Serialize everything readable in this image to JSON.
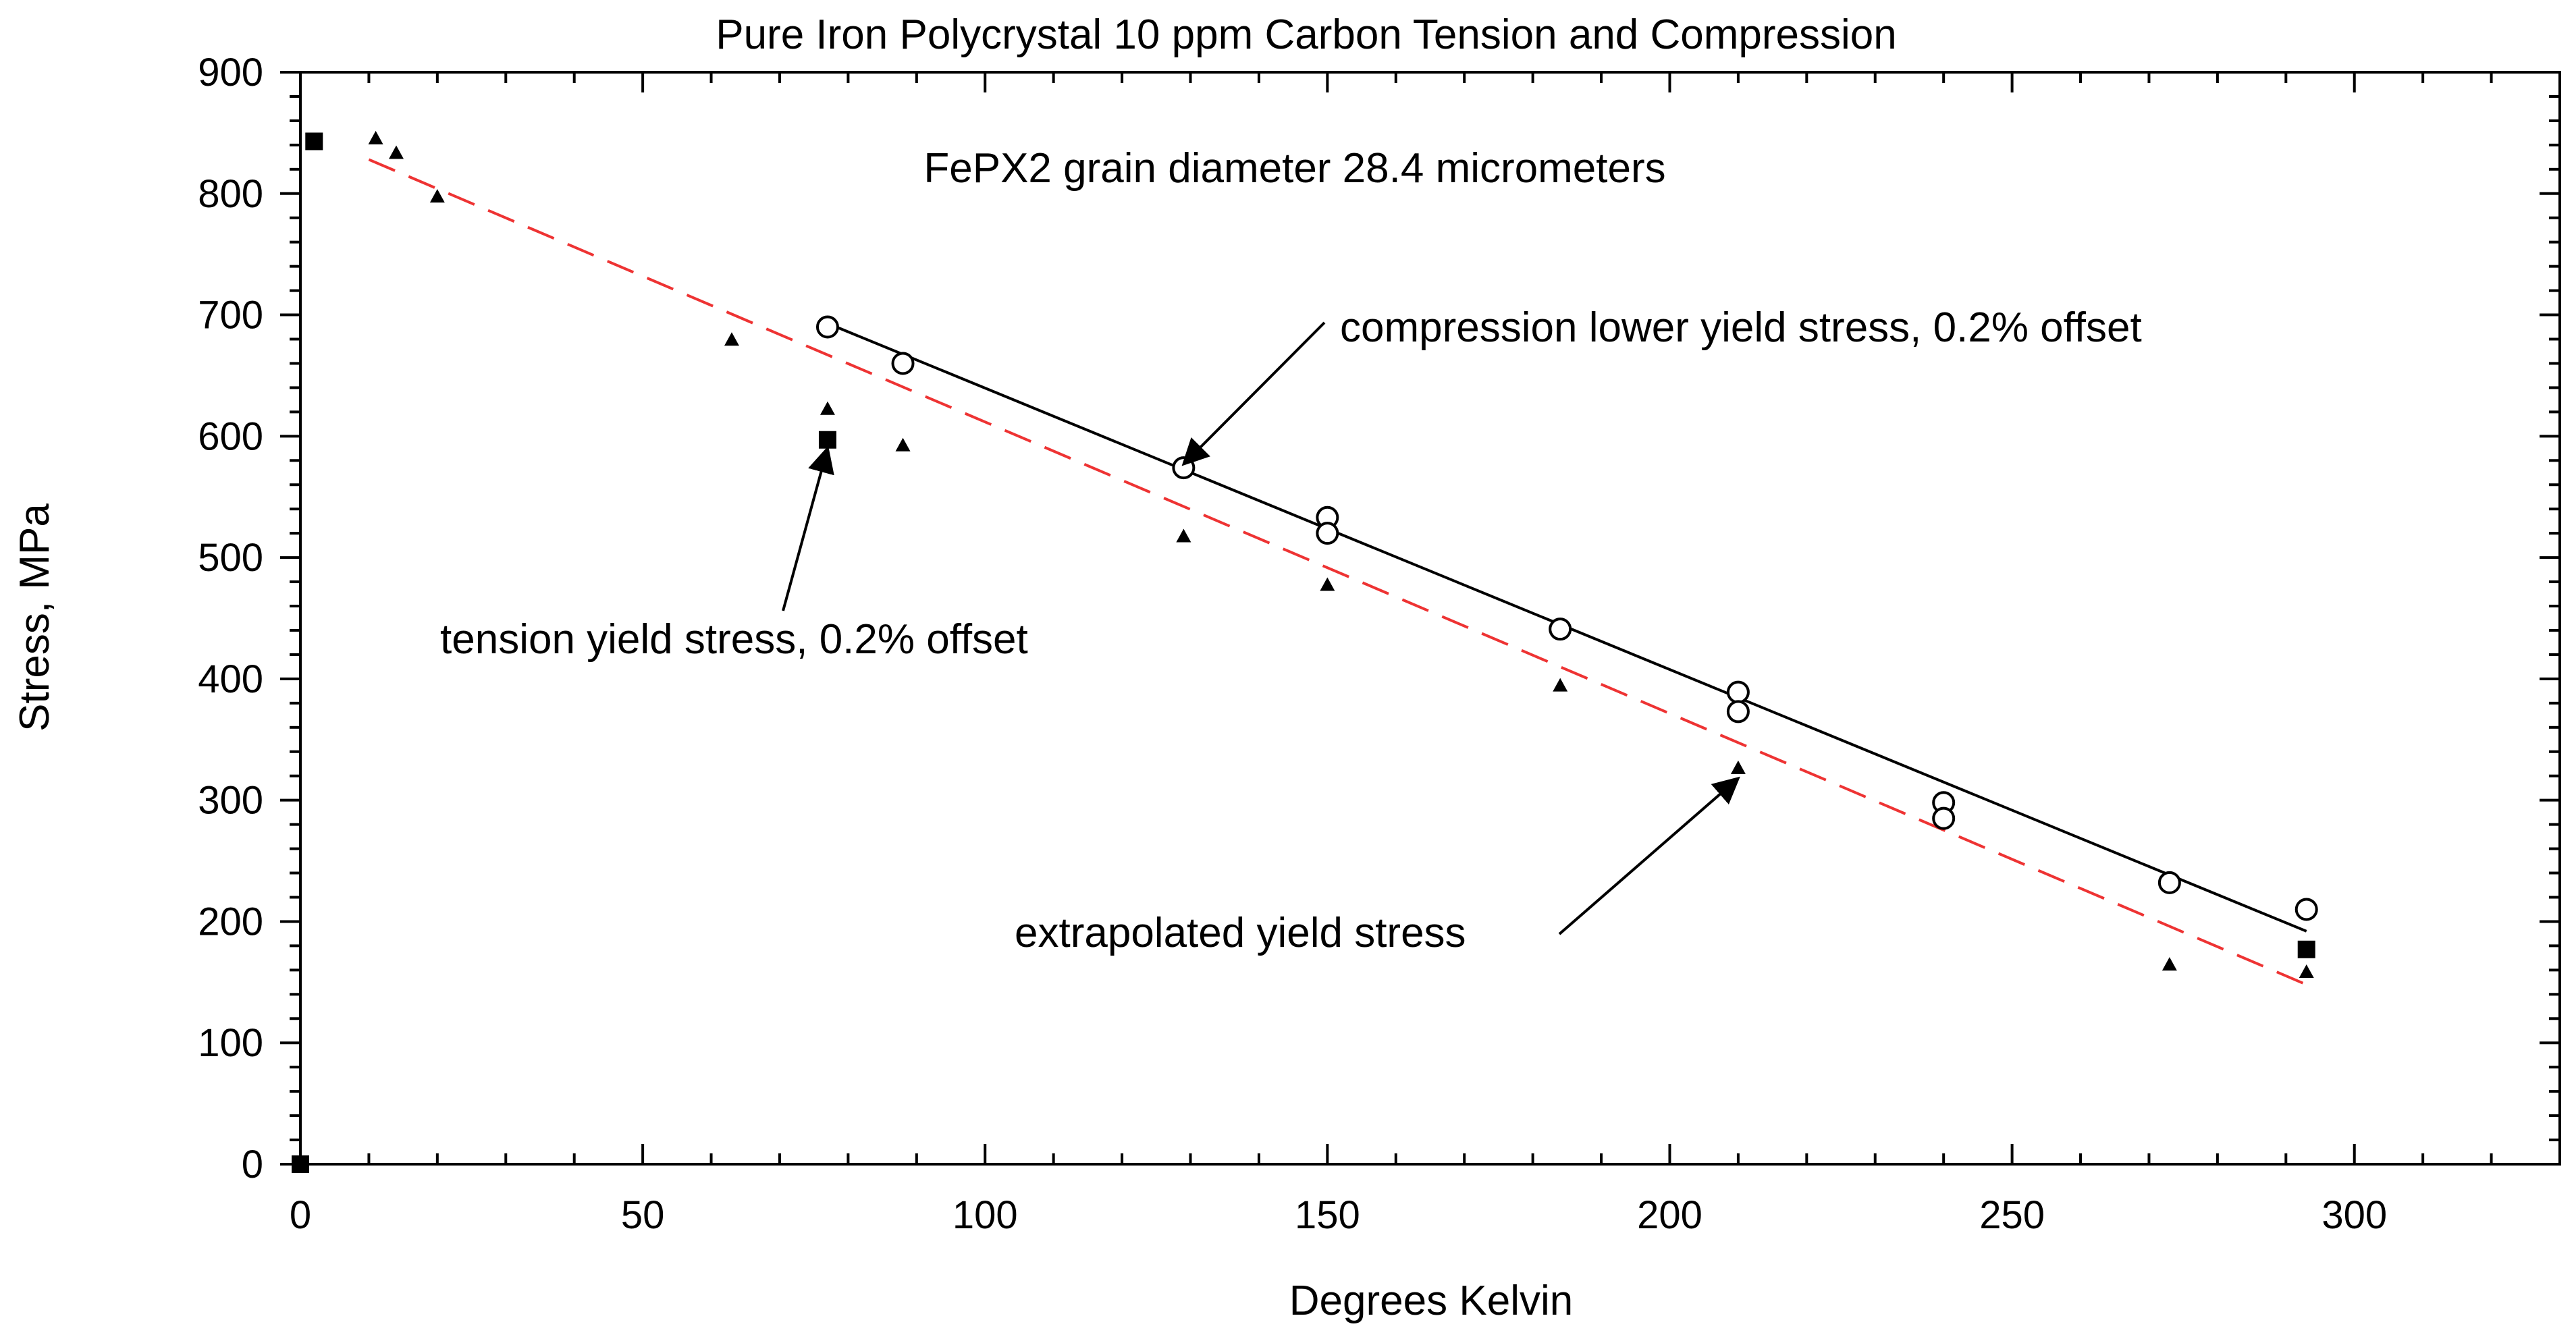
{
  "chart_data": {
    "type": "scatter",
    "title": "Pure Iron Polycrystal 10 ppm Carbon Tension and Compression",
    "subtitle": "FePX2 grain diameter 28.4 micrometers",
    "xlabel": "Degrees Kelvin",
    "ylabel": "Stress, MPa",
    "xlim": [
      0,
      330
    ],
    "ylim": [
      0,
      900
    ],
    "x_ticks": [
      0,
      50,
      100,
      150,
      200,
      250,
      300
    ],
    "y_ticks": [
      0,
      100,
      200,
      300,
      400,
      500,
      600,
      700,
      800,
      900
    ],
    "grid": false,
    "series": [
      {
        "name": "compression lower yield stress, 0.2% offset",
        "marker": "open-circle",
        "points": [
          {
            "x": 77,
            "y": 690
          },
          {
            "x": 88,
            "y": 660
          },
          {
            "x": 129,
            "y": 574
          },
          {
            "x": 150,
            "y": 533
          },
          {
            "x": 150,
            "y": 520
          },
          {
            "x": 184,
            "y": 441
          },
          {
            "x": 210,
            "y": 389
          },
          {
            "x": 210,
            "y": 373
          },
          {
            "x": 240,
            "y": 298
          },
          {
            "x": 240,
            "y": 285
          },
          {
            "x": 273,
            "y": 232
          },
          {
            "x": 293,
            "y": 210
          }
        ]
      },
      {
        "name": "tension yield stress, 0.2% offset",
        "marker": "filled-square",
        "points": [
          {
            "x": 2,
            "y": 843
          },
          {
            "x": 77,
            "y": 597
          },
          {
            "x": 293,
            "y": 177
          },
          {
            "x": 0,
            "y": 0
          }
        ]
      },
      {
        "name": "extrapolated yield stress",
        "marker": "filled-triangle",
        "points": [
          {
            "x": 11,
            "y": 845
          },
          {
            "x": 14,
            "y": 833
          },
          {
            "x": 20,
            "y": 797
          },
          {
            "x": 63,
            "y": 679
          },
          {
            "x": 77,
            "y": 622
          },
          {
            "x": 88,
            "y": 592
          },
          {
            "x": 129,
            "y": 517
          },
          {
            "x": 150,
            "y": 477
          },
          {
            "x": 184,
            "y": 394
          },
          {
            "x": 210,
            "y": 326
          },
          {
            "x": 273,
            "y": 164
          },
          {
            "x": 293,
            "y": 158
          }
        ]
      }
    ],
    "fit_lines": [
      {
        "name": "compression fit",
        "style": "solid",
        "color": "#000000",
        "x": [
          77,
          293
        ],
        "y": [
          693,
          192
        ]
      },
      {
        "name": "tension fit",
        "style": "dashed",
        "color": "#ee3333",
        "x": [
          10,
          293
        ],
        "y": [
          828,
          148
        ]
      }
    ],
    "annotations": [
      {
        "text": "compression lower yield stress, 0.2% offset",
        "arrow_to": {
          "x": 129,
          "y": 577
        }
      },
      {
        "text": "tension yield stress, 0.2% offset",
        "arrow_to": {
          "x": 77,
          "y": 590
        }
      },
      {
        "text": "extrapolated yield stress",
        "arrow_to": {
          "x": 210,
          "y": 318
        }
      }
    ]
  }
}
